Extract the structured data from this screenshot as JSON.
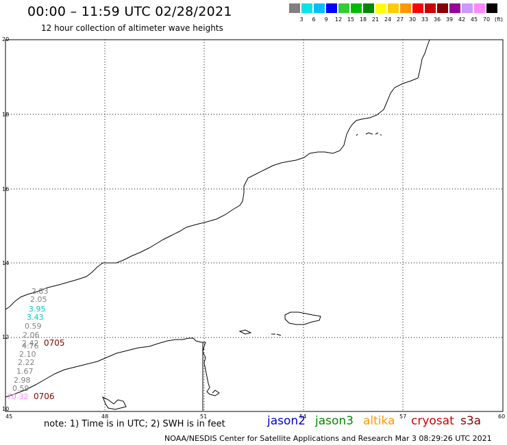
{
  "title": "00:00 – 11:59 UTC 02/28/2021",
  "subtitle": "12 hour collection of altimeter wave heights",
  "legend": {
    "colors": [
      "#808080",
      "#00e5e5",
      "#00bfff",
      "#0000ff",
      "#33cc33",
      "#00bb00",
      "#008800",
      "#ffff00",
      "#ffcc00",
      "#ff9900",
      "#ff0000",
      "#cc0000",
      "#880000",
      "#990099",
      "#cc99ff",
      "#ff88ff",
      "#000000"
    ],
    "labels": [
      "3",
      "6",
      "9",
      "12",
      "15",
      "18",
      "21",
      "24",
      "27",
      "30",
      "33",
      "36",
      "39",
      "42",
      "45",
      "70"
    ],
    "unit": "(ft)"
  },
  "axes": {
    "lon_ticks": [
      "45",
      "48",
      "51",
      "54",
      "57",
      "60"
    ],
    "lat_ticks": [
      "20",
      "18",
      "16",
      "14",
      "12",
      "10"
    ]
  },
  "observations": [
    {
      "text": "2.83",
      "color": "#808080"
    },
    {
      "text": "2.05",
      "color": "#808080"
    },
    {
      "text": "3.95",
      "color": "#00c8c8"
    },
    {
      "text": "3.43",
      "color": "#00c8c8"
    },
    {
      "text": "0.59",
      "color": "#808080"
    },
    {
      "text": "2.06",
      "color": "#808080"
    },
    {
      "text": "2.42",
      "color": "#808080"
    },
    {
      "text": "4.76",
      "color": "#808080"
    },
    {
      "text": "2.10",
      "color": "#808080"
    },
    {
      "text": "2.22",
      "color": "#808080"
    },
    {
      "text": "1.67",
      "color": "#808080"
    },
    {
      "text": "2.98",
      "color": "#808080"
    },
    {
      "text": "0.59",
      "color": "#808080"
    },
    {
      "text": "70.32",
      "color": "#ff88ff"
    }
  ],
  "time_labels": [
    {
      "text": "0705",
      "color": "#880000"
    },
    {
      "text": "0706",
      "color": "#880000"
    }
  ],
  "note": "note: 1) Time is in UTC; 2) SWH is in feet",
  "satellites": [
    {
      "name": "jason2",
      "color": "#0000cc"
    },
    {
      "name": "jason3",
      "color": "#008800"
    },
    {
      "name": "altika",
      "color": "#ff9900"
    },
    {
      "name": "cryosat",
      "color": "#cc0000"
    },
    {
      "name": "s3a",
      "color": "#880000"
    }
  ],
  "credit": "NOAA/NESDIS Center for Satellite Applications and Research   Mar  3 08:29:26 UTC 2021"
}
